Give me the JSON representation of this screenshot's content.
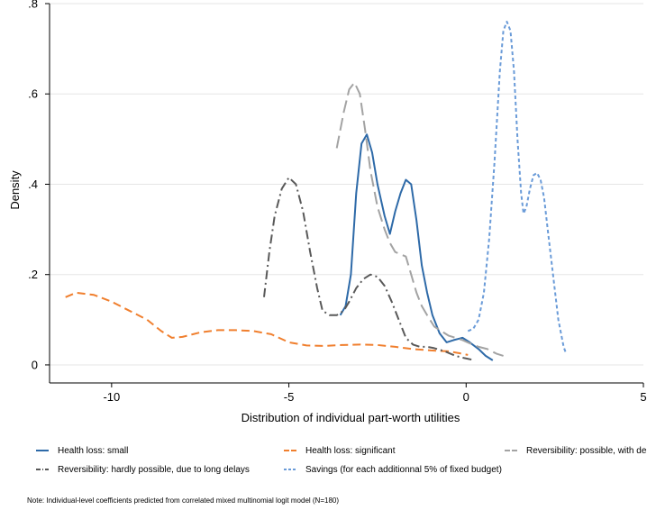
{
  "chart_data": {
    "type": "line",
    "title": "",
    "xlabel": "Distribution of individual part-worth utilities",
    "ylabel": "Density",
    "xlim": [
      -11.75,
      5
    ],
    "ylim": [
      -0.04,
      0.8
    ],
    "xticks": [
      -10,
      -5,
      0,
      5
    ],
    "xtick_labels": [
      "-10",
      "-5",
      "0",
      "5"
    ],
    "yticks": [
      0,
      0.2,
      0.4,
      0.6,
      0.8
    ],
    "ytick_labels": [
      "0",
      ".2",
      ".4",
      ".6",
      ".8"
    ],
    "grid": "horizontal",
    "legend_position": "bottom",
    "note": "Note: Individual-level coefficients predicted from correlated mixed multinomial logit model (N=180)",
    "series": [
      {
        "name": "Health loss: small",
        "color": "#2e6aa8",
        "dash": "solid",
        "points": [
          [
            -3.55,
            0.11
          ],
          [
            -3.4,
            0.13
          ],
          [
            -3.25,
            0.2
          ],
          [
            -3.1,
            0.38
          ],
          [
            -2.95,
            0.49
          ],
          [
            -2.8,
            0.51
          ],
          [
            -2.65,
            0.47
          ],
          [
            -2.5,
            0.4
          ],
          [
            -2.3,
            0.33
          ],
          [
            -2.15,
            0.29
          ],
          [
            -2.0,
            0.34
          ],
          [
            -1.85,
            0.38
          ],
          [
            -1.7,
            0.41
          ],
          [
            -1.55,
            0.4
          ],
          [
            -1.4,
            0.32
          ],
          [
            -1.25,
            0.22
          ],
          [
            -1.1,
            0.16
          ],
          [
            -0.95,
            0.11
          ],
          [
            -0.75,
            0.07
          ],
          [
            -0.55,
            0.05
          ],
          [
            -0.35,
            0.055
          ],
          [
            -0.1,
            0.06
          ],
          [
            0.1,
            0.05
          ],
          [
            0.35,
            0.035
          ],
          [
            0.55,
            0.02
          ],
          [
            0.75,
            0.01
          ]
        ]
      },
      {
        "name": "Health loss: significant",
        "color": "#f07f2e",
        "dash": "long-dash",
        "points": [
          [
            -11.3,
            0.15
          ],
          [
            -11.0,
            0.16
          ],
          [
            -10.5,
            0.155
          ],
          [
            -10.0,
            0.14
          ],
          [
            -9.5,
            0.12
          ],
          [
            -9.0,
            0.1
          ],
          [
            -8.6,
            0.075
          ],
          [
            -8.3,
            0.06
          ],
          [
            -8.0,
            0.062
          ],
          [
            -7.5,
            0.072
          ],
          [
            -7.0,
            0.077
          ],
          [
            -6.5,
            0.077
          ],
          [
            -6.0,
            0.075
          ],
          [
            -5.5,
            0.068
          ],
          [
            -5.0,
            0.05
          ],
          [
            -4.5,
            0.043
          ],
          [
            -4.0,
            0.042
          ],
          [
            -3.5,
            0.044
          ],
          [
            -3.0,
            0.045
          ],
          [
            -2.5,
            0.044
          ],
          [
            -2.0,
            0.04
          ],
          [
            -1.5,
            0.035
          ],
          [
            -1.0,
            0.032
          ],
          [
            -0.5,
            0.03
          ],
          [
            -0.2,
            0.026
          ],
          [
            0.05,
            0.022
          ]
        ]
      },
      {
        "name": "Reversibility: possible, with delays",
        "color": "#a3a3a3",
        "dash": "long-dash-gap",
        "points": [
          [
            -3.65,
            0.48
          ],
          [
            -3.45,
            0.56
          ],
          [
            -3.3,
            0.61
          ],
          [
            -3.15,
            0.625
          ],
          [
            -3.0,
            0.6
          ],
          [
            -2.85,
            0.52
          ],
          [
            -2.7,
            0.43
          ],
          [
            -2.5,
            0.35
          ],
          [
            -2.3,
            0.3
          ],
          [
            -2.15,
            0.27
          ],
          [
            -2.0,
            0.25
          ],
          [
            -1.85,
            0.245
          ],
          [
            -1.7,
            0.24
          ],
          [
            -1.55,
            0.2
          ],
          [
            -1.4,
            0.16
          ],
          [
            -1.25,
            0.13
          ],
          [
            -1.1,
            0.11
          ],
          [
            -0.9,
            0.085
          ],
          [
            -0.7,
            0.075
          ],
          [
            -0.5,
            0.065
          ],
          [
            -0.3,
            0.06
          ],
          [
            -0.1,
            0.055
          ],
          [
            0.1,
            0.048
          ],
          [
            0.35,
            0.04
          ],
          [
            0.6,
            0.035
          ],
          [
            0.85,
            0.025
          ],
          [
            1.05,
            0.02
          ]
        ]
      },
      {
        "name": "Reversibility: hardly possible, due to long delays",
        "color": "#595959",
        "dash": "dash-dot",
        "points": [
          [
            -5.7,
            0.15
          ],
          [
            -5.55,
            0.25
          ],
          [
            -5.4,
            0.33
          ],
          [
            -5.2,
            0.39
          ],
          [
            -5.0,
            0.415
          ],
          [
            -4.8,
            0.4
          ],
          [
            -4.6,
            0.34
          ],
          [
            -4.4,
            0.25
          ],
          [
            -4.2,
            0.17
          ],
          [
            -4.05,
            0.12
          ],
          [
            -3.85,
            0.11
          ],
          [
            -3.65,
            0.11
          ],
          [
            -3.45,
            0.12
          ],
          [
            -3.3,
            0.14
          ],
          [
            -3.1,
            0.17
          ],
          [
            -2.9,
            0.19
          ],
          [
            -2.7,
            0.2
          ],
          [
            -2.5,
            0.195
          ],
          [
            -2.3,
            0.175
          ],
          [
            -2.1,
            0.14
          ],
          [
            -1.9,
            0.1
          ],
          [
            -1.7,
            0.06
          ],
          [
            -1.5,
            0.045
          ],
          [
            -1.3,
            0.04
          ],
          [
            -1.1,
            0.04
          ],
          [
            -0.9,
            0.037
          ],
          [
            -0.6,
            0.03
          ],
          [
            -0.3,
            0.02
          ],
          [
            -0.05,
            0.015
          ],
          [
            0.25,
            0.01
          ]
        ]
      },
      {
        "name": "Savings (for each additionnal 5% of fixed budget)",
        "color": "#6a9bd8",
        "dash": "short-dash",
        "points": [
          [
            0.05,
            0.075
          ],
          [
            0.2,
            0.08
          ],
          [
            0.35,
            0.1
          ],
          [
            0.5,
            0.16
          ],
          [
            0.65,
            0.28
          ],
          [
            0.8,
            0.45
          ],
          [
            0.95,
            0.65
          ],
          [
            1.05,
            0.74
          ],
          [
            1.15,
            0.76
          ],
          [
            1.25,
            0.74
          ],
          [
            1.35,
            0.65
          ],
          [
            1.45,
            0.5
          ],
          [
            1.55,
            0.38
          ],
          [
            1.62,
            0.335
          ],
          [
            1.7,
            0.35
          ],
          [
            1.8,
            0.39
          ],
          [
            1.9,
            0.42
          ],
          [
            2.0,
            0.425
          ],
          [
            2.1,
            0.41
          ],
          [
            2.2,
            0.37
          ],
          [
            2.3,
            0.3
          ],
          [
            2.45,
            0.2
          ],
          [
            2.6,
            0.1
          ],
          [
            2.75,
            0.04
          ],
          [
            2.82,
            0.025
          ]
        ]
      }
    ]
  }
}
